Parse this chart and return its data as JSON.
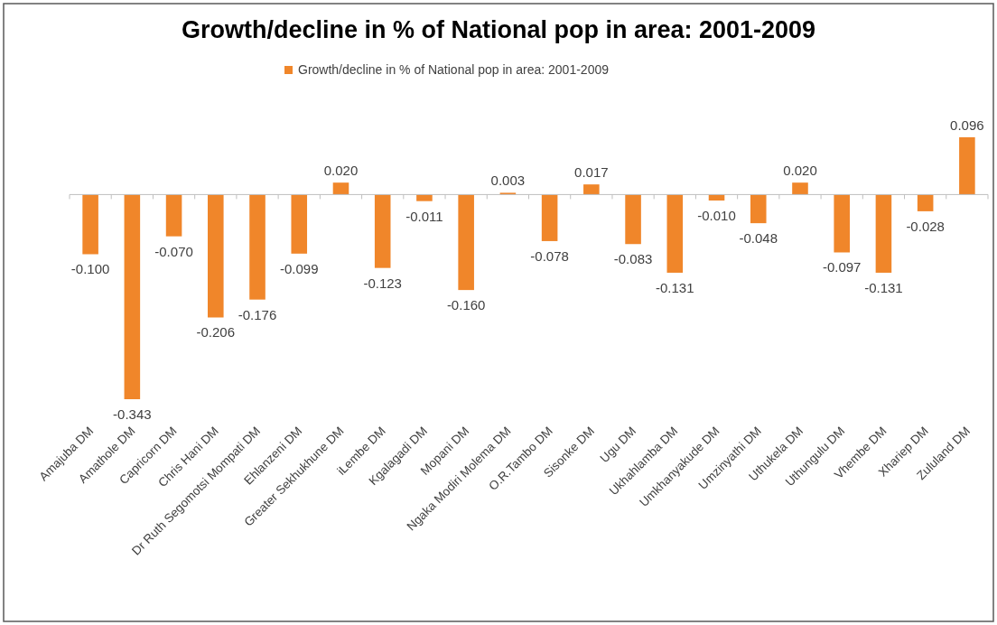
{
  "chart_data": {
    "type": "bar",
    "title": "Growth/decline in  % of National pop in area: 2001-2009",
    "categories": [
      "Amajuba DM",
      "Amathole DM",
      "Capricorn DM",
      "Chris Hani DM",
      "Dr Ruth Segomotsi Mompati DM",
      "Ehlanzeni DM",
      "Greater Sekhukhune DM",
      "iLembe DM",
      "Kgalagadi DM",
      "Mopani DM",
      "Ngaka Modiri Molema DM",
      "O.R.Tambo DM",
      "Sisonke DM",
      "Ugu DM",
      "Ukhahlamba DM",
      "Umkhanyakude DM",
      "Umzinyathi DM",
      "Uthukela DM",
      "Uthungulu DM",
      "Vhembe DM",
      "Xhariep DM",
      "Zululand DM"
    ],
    "series": [
      {
        "name": "Growth/decline in  % of National pop in area: 2001-2009",
        "color": "#f0862a",
        "values": [
          -0.1,
          -0.343,
          -0.07,
          -0.206,
          -0.176,
          -0.099,
          0.02,
          -0.123,
          -0.011,
          -0.16,
          0.003,
          -0.078,
          0.017,
          -0.083,
          -0.131,
          -0.01,
          -0.048,
          0.02,
          -0.097,
          -0.131,
          -0.028,
          0.096
        ],
        "value_labels": [
          "-0.100",
          "-0.343",
          "-0.070",
          "-0.206",
          "-0.176",
          "-0.099",
          "0.020",
          "-0.123",
          "-0.011",
          "-0.160",
          "0.003",
          "-0.078",
          "0.017",
          "-0.083",
          "-0.131",
          "-0.010",
          "-0.048",
          "0.020",
          "-0.097",
          "-0.131",
          "-0.028",
          "0.096"
        ]
      }
    ],
    "legend": "top"
  }
}
